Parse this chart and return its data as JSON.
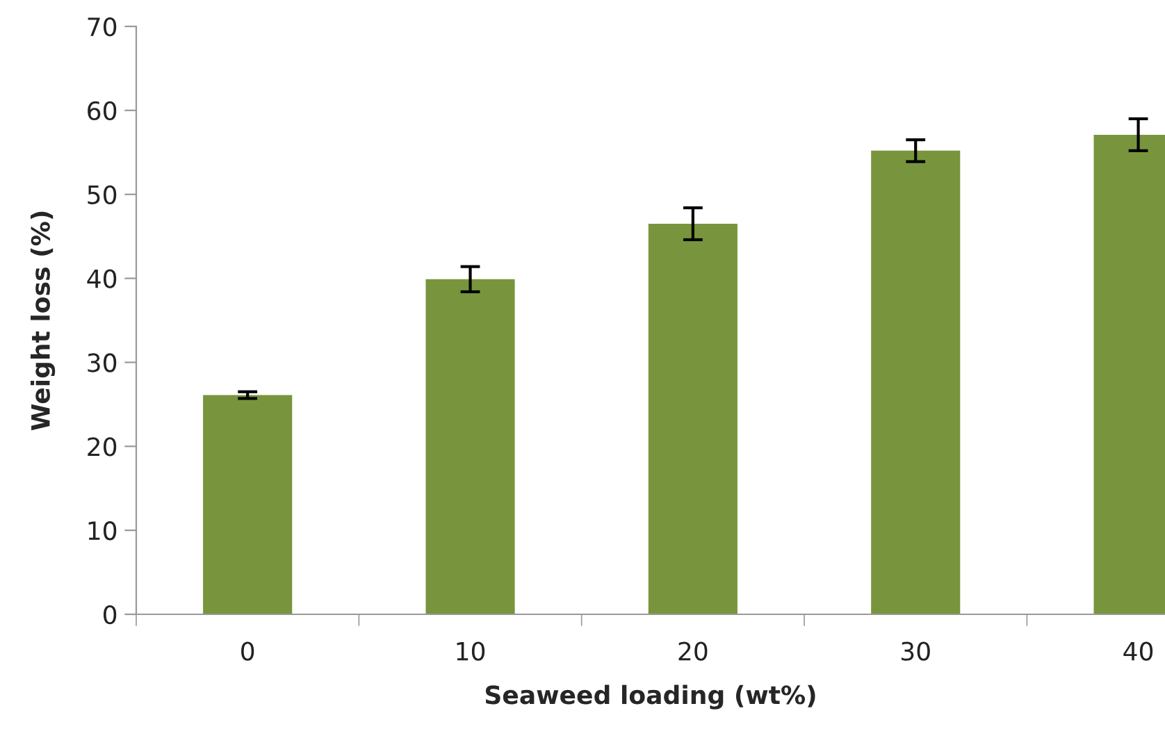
{
  "chart_data": {
    "type": "bar",
    "xlabel": "Seaweed loading (wt%)",
    "ylabel": "Weight loss (%)",
    "categories": [
      "0",
      "10",
      "20",
      "30",
      "40"
    ],
    "values": [
      26.1,
      39.9,
      46.5,
      55.2,
      57.1
    ],
    "errors": [
      0.4,
      1.5,
      1.9,
      1.3,
      1.9
    ],
    "color": "#78953d",
    "ylim": [
      0,
      70
    ],
    "yticks": [
      0,
      10,
      20,
      30,
      40,
      50,
      60,
      70
    ],
    "grid": false
  }
}
